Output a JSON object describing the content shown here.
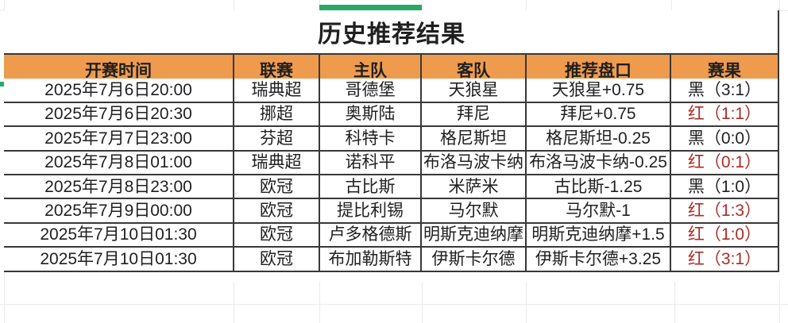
{
  "title": "历史推荐结果",
  "columns": [
    "开赛时间",
    "联赛",
    "主队",
    "客队",
    "推荐盘口",
    "赛果"
  ],
  "rows": [
    {
      "time": "2025年7月6日20:00",
      "league": "瑞典超",
      "home": "哥德堡",
      "away": "天狼星",
      "handicap": "天狼星+0.75",
      "result": "黑（3:1）",
      "result_color": "black"
    },
    {
      "time": "2025年7月6日20:30",
      "league": "挪超",
      "home": "奥斯陆",
      "away": "拜尼",
      "handicap": "拜尼+0.75",
      "result": "红（1:1）",
      "result_color": "red"
    },
    {
      "time": "2025年7月7日23:00",
      "league": "芬超",
      "home": "科特卡",
      "away": "格尼斯坦",
      "handicap": "格尼斯坦-0.25",
      "result": "黑（0:0）",
      "result_color": "black"
    },
    {
      "time": "2025年7月8日01:00",
      "league": "瑞典超",
      "home": "诺科平",
      "away": "布洛马波卡纳",
      "handicap": "布洛马波卡纳-0.25",
      "result": "红（0:1）",
      "result_color": "red"
    },
    {
      "time": "2025年7月8日23:00",
      "league": "欧冠",
      "home": "古比斯",
      "away": "米萨米",
      "handicap": "古比斯-1.25",
      "result": "黑（1:0）",
      "result_color": "black"
    },
    {
      "time": "2025年7月9日00:00",
      "league": "欧冠",
      "home": "提比利锡",
      "away": "马尔默",
      "handicap": "马尔默-1",
      "result": "红（1:3）",
      "result_color": "red"
    },
    {
      "time": "2025年7月10日01:30",
      "league": "欧冠",
      "home": "卢多格德斯",
      "away": "明斯克迪纳摩",
      "handicap": "明斯克迪纳摩+1.5",
      "result": "红（1:0）",
      "result_color": "red"
    },
    {
      "time": "2025年7月10日01:30",
      "league": "欧冠",
      "home": "布加勒斯特",
      "away": "伊斯卡尔德",
      "handicap": "伊斯卡尔德+3.25",
      "result": "红（3:1）",
      "result_color": "red"
    }
  ],
  "colors": {
    "header_bg": "#EF9B4E",
    "red_result": "#AF2B24",
    "black_text": "#1f1f1f",
    "green_accent": "#2BA864",
    "grid_dark": "#383838",
    "grid_light": "#ebebeb"
  }
}
